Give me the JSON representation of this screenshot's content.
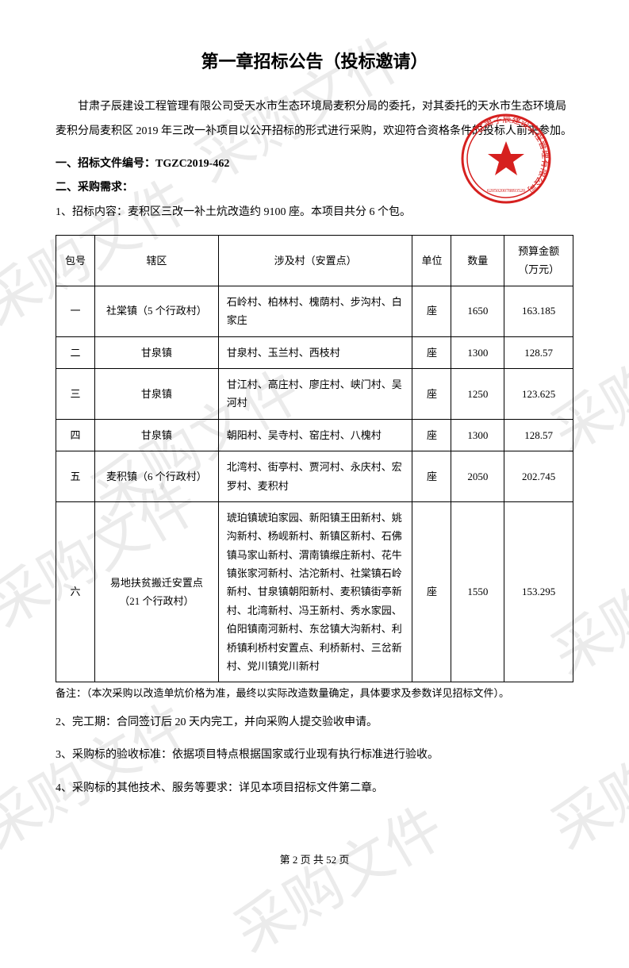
{
  "watermark_text": "采购文件",
  "title": "第一章招标公告（投标邀请）",
  "intro": "甘肃子辰建设工程管理有限公司受天水市生态环境局麦积分局的委托，对其委托的天水市生态环境局麦积分局麦积区 2019 年三改一补项目以公开招标的形式进行采购，欢迎符合资格条件的投标人前来参加。",
  "section1_label": "一、招标文件编号：",
  "section1_value": "TGZC2019-462",
  "section2_label": "二、采购需求：",
  "line1": "1、招标内容：麦积区三改一补土炕改造约 9100 座。本项目共分 6 个包。",
  "stamp": {
    "outer_text": "甘肃子辰建设工程管理有限公司",
    "color": "#d6201f"
  },
  "table": {
    "headers": {
      "pkg": "包号",
      "area": "辖区",
      "villages": "涉及村（安置点）",
      "unit": "单位",
      "qty": "数量",
      "amount_l1": "预算金额",
      "amount_l2": "（万元）"
    },
    "rows": [
      {
        "pkg": "一",
        "area": "社棠镇（5 个行政村）",
        "villages": "石岭村、柏林村、槐荫村、步沟村、白家庄",
        "unit": "座",
        "qty": "1650",
        "amount": "163.185"
      },
      {
        "pkg": "二",
        "area": "甘泉镇",
        "villages": "甘泉村、玉兰村、西枝村",
        "unit": "座",
        "qty": "1300",
        "amount": "128.57"
      },
      {
        "pkg": "三",
        "area": "甘泉镇",
        "villages": "甘江村、高庄村、廖庄村、峡门村、吴河村",
        "unit": "座",
        "qty": "1250",
        "amount": "123.625"
      },
      {
        "pkg": "四",
        "area": "甘泉镇",
        "villages": "朝阳村、吴寺村、窑庄村、八槐村",
        "unit": "座",
        "qty": "1300",
        "amount": "128.57"
      },
      {
        "pkg": "五",
        "area": "麦积镇（6 个行政村）",
        "villages": "北湾村、街亭村、贾河村、永庆村、宏罗村、麦积村",
        "unit": "座",
        "qty": "2050",
        "amount": "202.745"
      },
      {
        "pkg": "六",
        "area": "易地扶贫搬迁安置点（21 个行政村）",
        "villages": "琥珀镇琥珀家园、新阳镇王田新村、姚沟新村、杨岘新村、新镇区新村、石佛镇马家山新村、渭南镇缑庄新村、花牛镇张家河新村、沽沱新村、社棠镇石岭新村、甘泉镇朝阳新村、麦积镇街亭新村、北湾新村、冯王新村、秀水家园、伯阳镇南河新村、东岔镇大沟新村、利桥镇利桥村安置点、利桥新村、三岔新村、党川镇党川新村",
        "unit": "座",
        "qty": "1550",
        "amount": "153.295"
      }
    ]
  },
  "note": "备注：（本次采购以改造单炕价格为准，最终以实际改造数量确定，具体要求及参数详见招标文件）。",
  "after": {
    "l2": "2、完工期：合同签订后 20 天内完工，并向采购人提交验收申请。",
    "l3": "3、采购标的验收标准：依据项目特点根据国家或行业现有执行标准进行验收。",
    "l4": "4、采购标的其他技术、服务等要求：详见本项目招标文件第二章。"
  },
  "footer": "第 2 页 共 52 页"
}
